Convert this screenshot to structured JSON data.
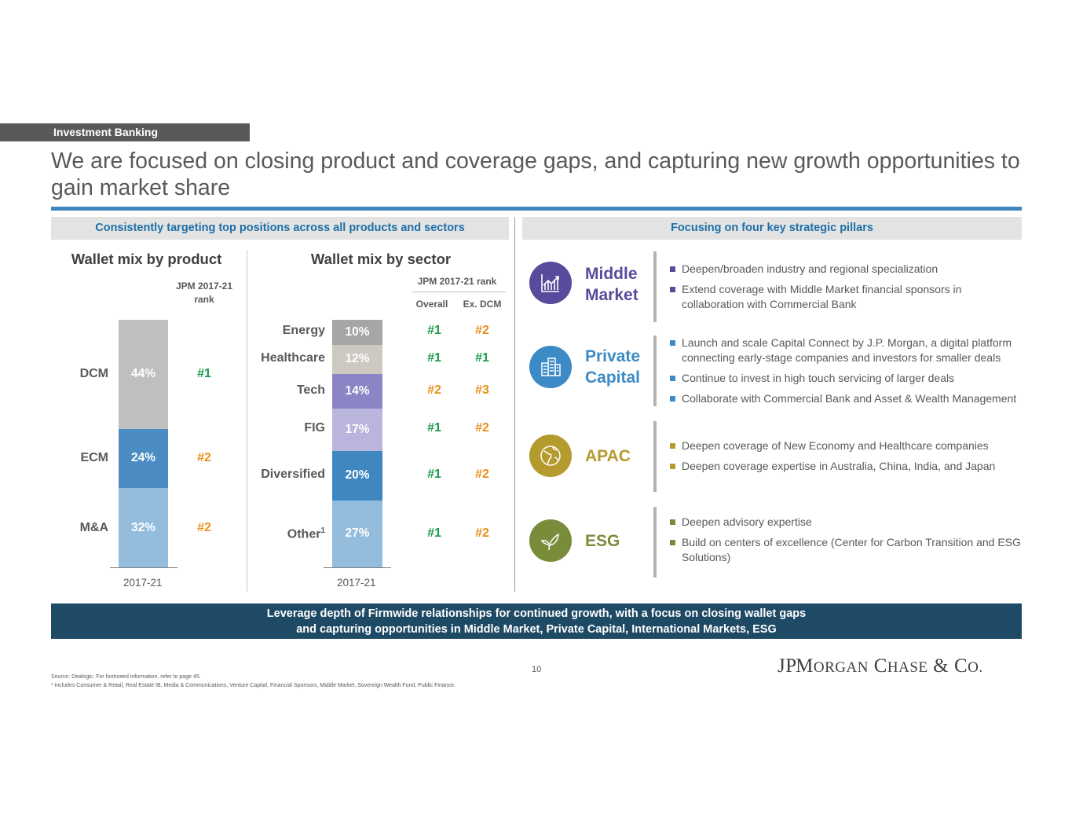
{
  "header": {
    "section_tag": "Investment Banking",
    "title": "We are focused on closing product and coverage gaps, and capturing new growth opportunities to gain market share"
  },
  "left_panel": {
    "heading": "Consistently targeting top positions across all products and sectors"
  },
  "right_panel": {
    "heading": "Focusing on four key strategic pillars"
  },
  "chart_data": [
    {
      "type": "bar",
      "stacked": true,
      "title": "Wallet mix by product",
      "categories": [
        "2017-21"
      ],
      "rank_header": "JPM 2017-21 rank",
      "series": [
        {
          "name": "M&A",
          "value": 32,
          "label": "32%",
          "rank": "#2",
          "color": "#93bcdd"
        },
        {
          "name": "ECM",
          "value": 24,
          "label": "24%",
          "rank": "#2",
          "color": "#4a8cc3"
        },
        {
          "name": "DCM",
          "value": 44,
          "label": "44%",
          "rank": "#1",
          "color": "#bfbfbf"
        }
      ],
      "ylim": [
        0,
        100
      ]
    },
    {
      "type": "bar",
      "stacked": true,
      "title": "Wallet mix by sector",
      "categories": [
        "2017-21"
      ],
      "rank_header": "JPM 2017-21 rank",
      "rank_columns": [
        "Overall",
        "Ex. DCM"
      ],
      "series": [
        {
          "name": "Other",
          "sup": "1",
          "value": 27,
          "label": "27%",
          "overall": "#1",
          "ex_dcm": "#2",
          "color": "#93bcdd"
        },
        {
          "name": "Diversified",
          "value": 20,
          "label": "20%",
          "overall": "#1",
          "ex_dcm": "#2",
          "color": "#3f87c1"
        },
        {
          "name": "FIG",
          "value": 17,
          "label": "17%",
          "overall": "#1",
          "ex_dcm": "#2",
          "color": "#b9b5dc"
        },
        {
          "name": "Tech",
          "value": 14,
          "label": "14%",
          "overall": "#2",
          "ex_dcm": "#3",
          "color": "#8a85c5"
        },
        {
          "name": "Healthcare",
          "value": 12,
          "label": "12%",
          "overall": "#1",
          "ex_dcm": "#1",
          "color": "#cdc9c1"
        },
        {
          "name": "Energy",
          "value": 10,
          "label": "10%",
          "overall": "#1",
          "ex_dcm": "#2",
          "color": "#a6a6a6"
        }
      ],
      "ylim": [
        0,
        100
      ]
    }
  ],
  "rank_colors": {
    "#1": "#1a9a48",
    "#2": "#e8901a",
    "#3": "#e8901a"
  },
  "pillars": [
    {
      "name_lines": [
        "Middle",
        "Market"
      ],
      "icon": "chart-growth-icon",
      "color": "#5a4a9c",
      "bullets": [
        "Deepen/broaden industry and regional specialization",
        "Extend coverage with Middle Market financial sponsors in collaboration with Commercial Bank"
      ]
    },
    {
      "name_lines": [
        "Private",
        "Capital"
      ],
      "icon": "buildings-icon",
      "color": "#3d8bc6",
      "bullets": [
        "Launch and scale Capital Connect by J.P. Morgan, a digital platform connecting early-stage companies and investors for smaller deals",
        "Continue to invest in high touch servicing of larger deals",
        "Collaborate with Commercial Bank and Asset & Wealth Management"
      ]
    },
    {
      "name_lines": [
        "APAC"
      ],
      "icon": "globe-icon",
      "color": "#b59a2e",
      "bullets": [
        "Deepen coverage of New Economy and Healthcare companies",
        "Deepen coverage expertise in Australia, China, India, and Japan"
      ]
    },
    {
      "name_lines": [
        "ESG"
      ],
      "icon": "leaf-icon",
      "color": "#798c3a",
      "bullets": [
        "Deepen advisory expertise",
        "Build on centers of excellence (Center for Carbon Transition and ESG Solutions)"
      ]
    }
  ],
  "banner": {
    "line1": "Leverage depth of Firmwide relationships for continued growth, with a focus on closing wallet gaps",
    "line2": "and capturing opportunities in Middle Market, Private Capital, International Markets, ESG"
  },
  "footer": {
    "page_number": "10",
    "logo": "JPMorgan Chase & Co.",
    "source": "Source: Dealogic. For footnoted information, refer to page 45.",
    "footnote": "¹ Includes Consumer & Retail, Real Estate IB, Media & Communications, Venture Capital, Financial Sponsors, Middle Market, Sovereign Wealth Fund, Public Finance."
  }
}
